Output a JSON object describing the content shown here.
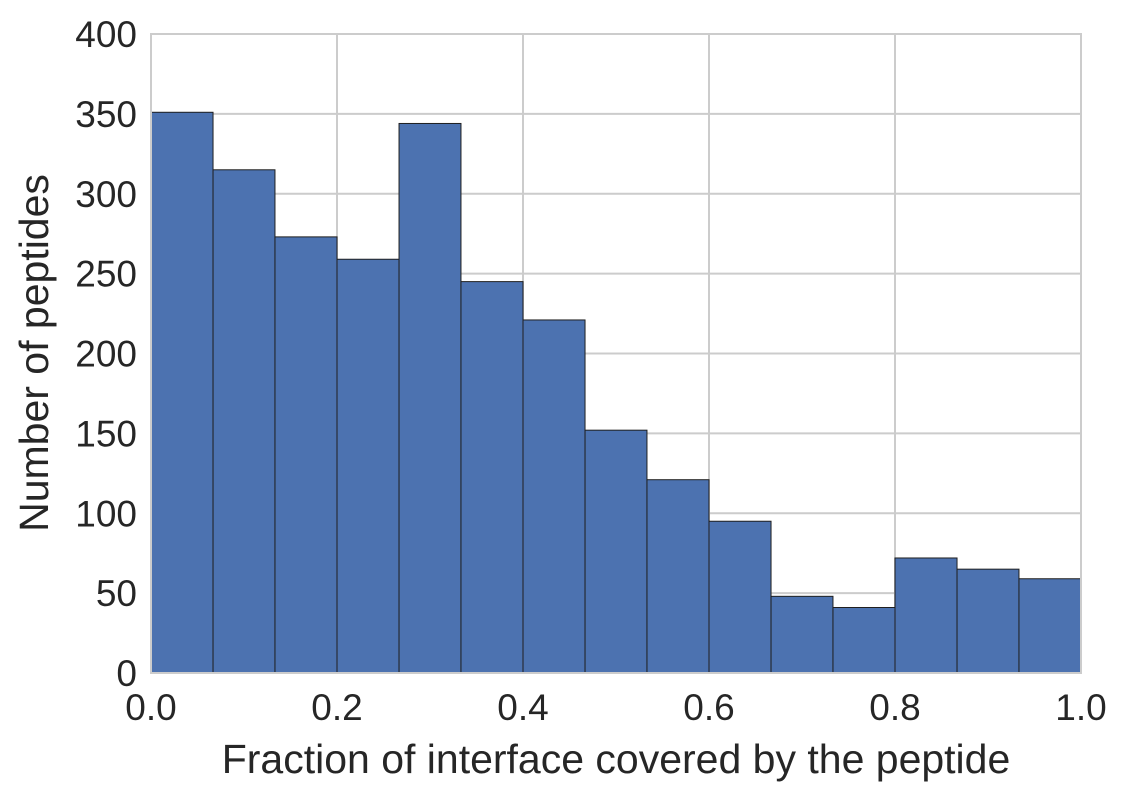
{
  "chart_data": {
    "type": "bar",
    "title": "",
    "xlabel": "Fraction of interface covered by the peptide",
    "ylabel": "Number of peptides",
    "xlim": [
      0.0,
      1.0
    ],
    "ylim": [
      0,
      400
    ],
    "x_ticks": [
      "0.0",
      "0.2",
      "0.4",
      "0.6",
      "0.8",
      "1.0"
    ],
    "y_ticks": [
      "0",
      "50",
      "100",
      "150",
      "200",
      "250",
      "300",
      "350",
      "400"
    ],
    "bin_edges": [
      0.0,
      0.0667,
      0.1333,
      0.2,
      0.2667,
      0.3333,
      0.4,
      0.4667,
      0.5333,
      0.6,
      0.6667,
      0.7333,
      0.8,
      0.8667,
      0.9333,
      1.0
    ],
    "values": [
      351,
      315,
      273,
      259,
      344,
      245,
      221,
      152,
      121,
      95,
      48,
      41,
      72,
      65,
      59
    ],
    "grid": true,
    "colors": {
      "bar_fill": "#4C72B0",
      "bar_edge": "#1f1f1f",
      "grid": "#cccccc",
      "frame": "#cccccc",
      "text": "#262626"
    }
  }
}
